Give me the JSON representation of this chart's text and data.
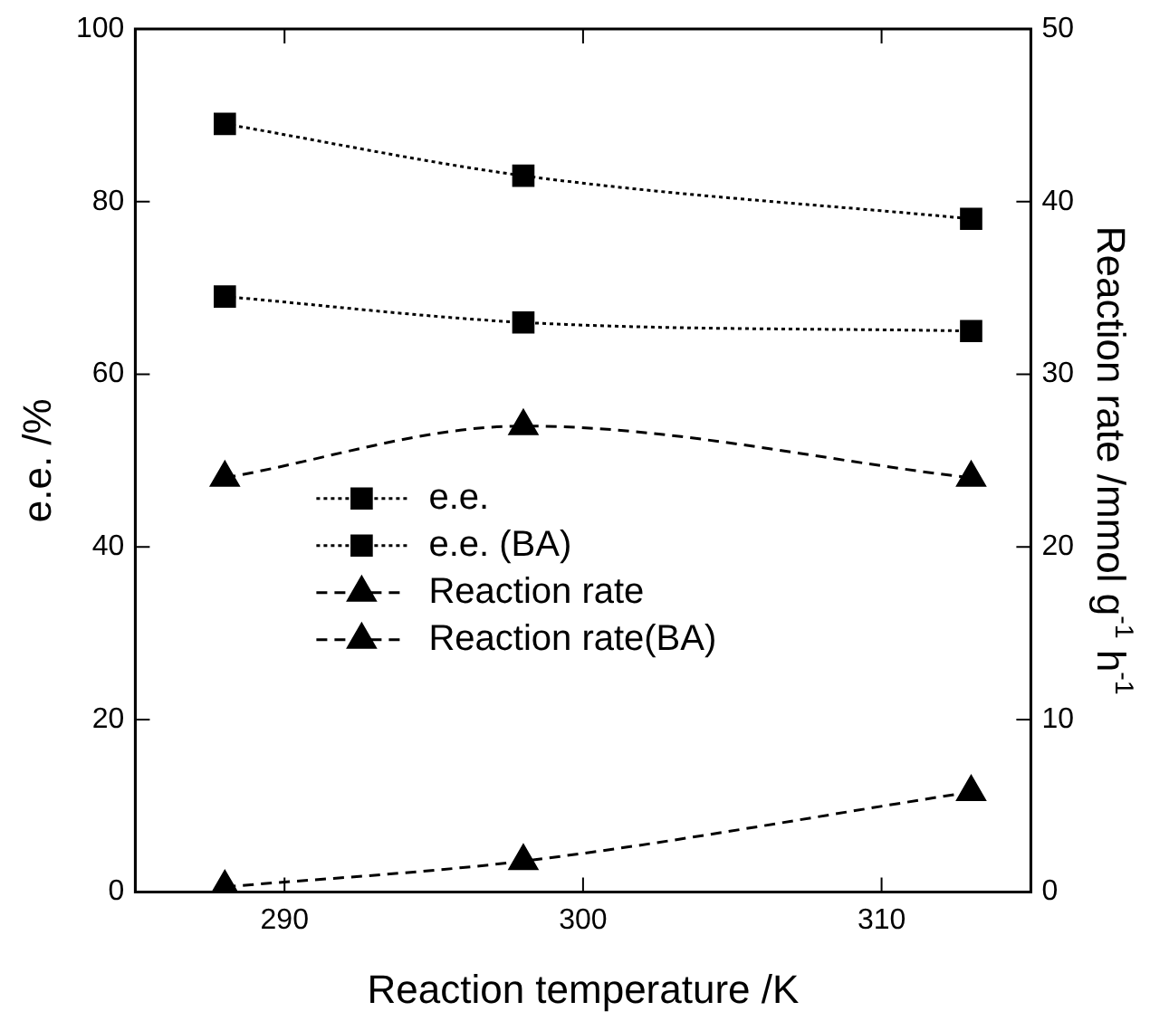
{
  "chart_data": {
    "type": "line",
    "xlabel": "Reaction temperature /K",
    "ylabel": "e.e. /%",
    "y2label": "Reaction rate /mmol g$^{-1}$ h$^{-1}$",
    "xlim": [
      285,
      315
    ],
    "xticks": [
      290,
      300,
      310
    ],
    "ylim": [
      0,
      100
    ],
    "yticks": [
      0,
      20,
      40,
      60,
      80,
      100
    ],
    "y2lim": [
      0,
      50
    ],
    "y2ticks": [
      0,
      10,
      20,
      30,
      40,
      50
    ],
    "grid": false,
    "legend": "left",
    "series": [
      {
        "name": "e.e.",
        "color": "#000000",
        "x": [
          288,
          298,
          313
        ],
        "values": [
          69,
          66,
          65
        ],
        "marker": "square",
        "line_style": "dotted"
      },
      {
        "name": "e.e. (BA)",
        "color": "#000000",
        "x": [
          288,
          298,
          313
        ],
        "values": [
          89,
          83,
          78
        ],
        "marker": "square",
        "line_style": "dotted"
      },
      {
        "name": "Reaction rate",
        "color": "#000000",
        "x": [
          288,
          298,
          313
        ],
        "values": [
          0.3,
          1.8,
          5.8
        ],
        "marker": "triangle",
        "line_style": "dashed",
        "axis": "y2"
      },
      {
        "name": "Reaction rate(BA)",
        "color": "#000000",
        "x": [
          288,
          298,
          313
        ],
        "values": [
          24,
          27,
          24
        ],
        "marker": "triangle",
        "line_style": "dashed",
        "axis": "y2"
      }
    ]
  }
}
